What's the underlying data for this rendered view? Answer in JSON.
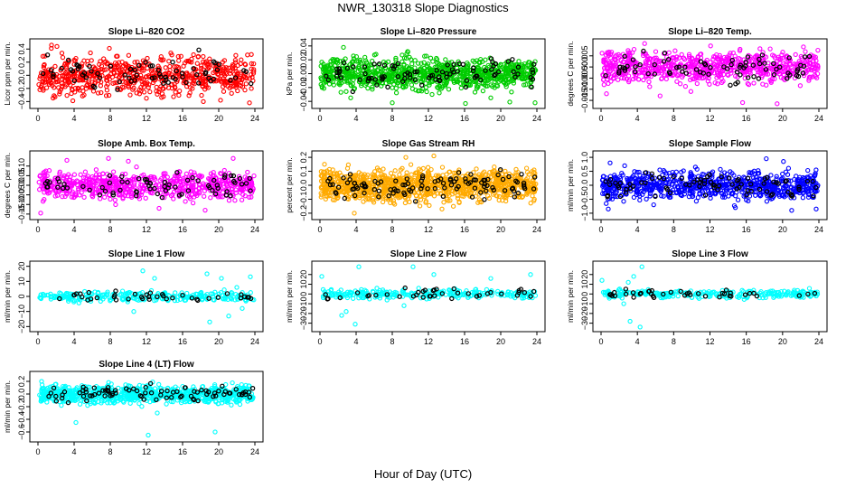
{
  "header": {
    "title": "NWR_130318  Slope Diagnostics",
    "x_caption": "Hour of Day (UTC)"
  },
  "chart_data": [
    {
      "type": "scatter",
      "title": "Slope Li–820 CO2",
      "ylabel": "Licor ppm per min.",
      "color": "#ff0000",
      "xlim": [
        0,
        24
      ],
      "ylim": [
        -0.45,
        0.5
      ],
      "xticks": [
        0,
        4,
        8,
        12,
        16,
        20,
        24
      ],
      "yticks": [
        -0.4,
        -0.2,
        0.0,
        0.2,
        0.4
      ],
      "ytick_labels": [
        "−0.4",
        "−0.2",
        "0.0",
        "0.2",
        "0.4"
      ],
      "spread": 0.14,
      "n": 650,
      "outliers": [
        [
          1.5,
          0.46
        ],
        [
          2.1,
          0.44
        ],
        [
          10.2,
          -0.3
        ],
        [
          12.0,
          -0.35
        ],
        [
          18.3,
          -0.4
        ],
        [
          23.4,
          -0.42
        ],
        [
          5.1,
          -0.3
        ],
        [
          20.2,
          -0.38
        ],
        [
          14.7,
          0.34
        ],
        [
          7.9,
          0.41
        ]
      ]
    },
    {
      "type": "scatter",
      "title": "Slope Li–820 Pressure",
      "ylabel": "kPa per min.",
      "color": "#00cc00",
      "xlim": [
        0,
        24
      ],
      "ylim": [
        -0.045,
        0.045
      ],
      "xticks": [
        0,
        4,
        8,
        12,
        16,
        20,
        24
      ],
      "yticks": [
        -0.04,
        -0.02,
        0.0,
        0.02,
        0.04
      ],
      "ytick_labels": [
        "−0.04",
        "−0.02",
        "0.00",
        "0.02",
        "0.04"
      ],
      "spread": 0.011,
      "n": 900,
      "outliers": [
        [
          2.6,
          0.038
        ],
        [
          3.4,
          -0.035
        ],
        [
          8.0,
          -0.042
        ],
        [
          16.1,
          -0.043
        ],
        [
          21.0,
          -0.041
        ],
        [
          23.8,
          -0.042
        ],
        [
          12.4,
          -0.03
        ],
        [
          9.7,
          0.032
        ],
        [
          18.9,
          -0.035
        ],
        [
          6.2,
          0.028
        ]
      ]
    },
    {
      "type": "scatter",
      "title": "Slope Li–820 Temp.",
      "ylabel": "degrees C per min.",
      "color": "#ff00ff",
      "xlim": [
        0,
        24
      ],
      "ylim": [
        -0.017,
        0.011
      ],
      "xticks": [
        0,
        4,
        8,
        12,
        16,
        20,
        24
      ],
      "yticks": [
        -0.015,
        -0.01,
        -0.005,
        0.0,
        0.005
      ],
      "ytick_labels": [
        "−0.015",
        "−0.010",
        "−0.005",
        "0.000",
        "0.005"
      ],
      "spread": 0.0035,
      "n": 700,
      "outliers": [
        [
          4.8,
          0.0105
        ],
        [
          15.6,
          -0.016
        ],
        [
          19.4,
          -0.0165
        ],
        [
          0.6,
          -0.012
        ],
        [
          9.9,
          -0.011
        ],
        [
          22.3,
          0.009
        ],
        [
          6.5,
          -0.013
        ]
      ]
    },
    {
      "type": "scatter",
      "title": "Slope Amb. Box Temp.",
      "ylabel": "degrees C per min.",
      "color": "#ff00ff",
      "xlim": [
        0,
        24
      ],
      "ylim": [
        -0.16,
        0.16
      ],
      "xticks": [
        0,
        4,
        8,
        12,
        16,
        20,
        24
      ],
      "yticks": [
        -0.15,
        -0.1,
        -0.05,
        0.0,
        0.05,
        0.1
      ],
      "ytick_labels": [
        "−0.15",
        "−0.10",
        "−0.05",
        "0.00",
        "0.05",
        "0.10"
      ],
      "spread": 0.035,
      "n": 650,
      "outliers": [
        [
          0.3,
          -0.145
        ],
        [
          13.4,
          -0.12
        ],
        [
          3.2,
          0.13
        ],
        [
          7.8,
          0.14
        ],
        [
          21.6,
          0.14
        ],
        [
          18.5,
          -0.13
        ],
        [
          10.0,
          0.125
        ]
      ]
    },
    {
      "type": "scatter",
      "title": "Slope Gas Stream RH",
      "ylabel": "percent per min.",
      "color": "#ffaa00",
      "xlim": [
        0,
        24
      ],
      "ylim": [
        -0.22,
        0.22
      ],
      "xticks": [
        0,
        4,
        8,
        12,
        16,
        20,
        24
      ],
      "yticks": [
        -0.2,
        -0.1,
        0.0,
        0.1,
        0.2
      ],
      "ytick_labels": [
        "−0.2",
        "−0.1",
        "0.0",
        "0.1",
        "0.2"
      ],
      "spread": 0.055,
      "n": 1100,
      "outliers": [
        [
          3.8,
          -0.2
        ],
        [
          9.5,
          0.2
        ],
        [
          13.5,
          -0.17
        ],
        [
          12.6,
          0.21
        ],
        [
          0.5,
          0.15
        ]
      ]
    },
    {
      "type": "scatter",
      "title": "Slope Sample Flow",
      "ylabel": "ml/min per min.",
      "color": "#0000ff",
      "xlim": [
        0,
        24
      ],
      "ylim": [
        -1.1,
        1.1
      ],
      "xticks": [
        0,
        4,
        8,
        12,
        16,
        20,
        24
      ],
      "yticks": [
        -1.0,
        -0.5,
        0.0,
        0.5,
        1.0
      ],
      "ytick_labels": [
        "−1.0",
        "−0.5",
        "0.0",
        "0.5",
        "1.0"
      ],
      "spread": 0.24,
      "n": 750,
      "outliers": [
        [
          1.0,
          0.8
        ],
        [
          0.8,
          -0.85
        ],
        [
          2.6,
          0.7
        ],
        [
          14.8,
          -0.8
        ],
        [
          18.2,
          0.95
        ],
        [
          21.0,
          -0.9
        ],
        [
          23.7,
          -0.85
        ],
        [
          20.1,
          0.85
        ],
        [
          5.8,
          -0.7
        ],
        [
          10.4,
          0.65
        ]
      ]
    },
    {
      "type": "scatter",
      "title": "Slope Line 1 Flow",
      "ylabel": "ml/min per min.",
      "color": "#00ffff",
      "xlim": [
        0,
        24
      ],
      "ylim": [
        -21,
        21
      ],
      "xticks": [
        0,
        4,
        8,
        12,
        16,
        20,
        24
      ],
      "yticks": [
        -20,
        -10,
        0,
        10,
        20
      ],
      "ytick_labels": [
        "−20",
        "−10",
        "0",
        "10",
        "20"
      ],
      "spread": 1.6,
      "n": 260,
      "outliers": [
        [
          11.6,
          17
        ],
        [
          12.9,
          12
        ],
        [
          10.6,
          -10
        ],
        [
          19.0,
          -17
        ],
        [
          20.3,
          12
        ],
        [
          22.6,
          -8
        ],
        [
          23.5,
          13
        ],
        [
          21.1,
          -13
        ],
        [
          18.7,
          15
        ],
        [
          22.0,
          6
        ]
      ]
    },
    {
      "type": "scatter",
      "title": "Slope Line 2 Flow",
      "ylabel": "ml/min per min.",
      "color": "#00ffff",
      "xlim": [
        0,
        24
      ],
      "ylim": [
        -35,
        30
      ],
      "xticks": [
        0,
        4,
        8,
        12,
        16,
        20,
        24
      ],
      "yticks": [
        -30,
        -20,
        -10,
        0,
        10,
        20
      ],
      "ytick_labels": [
        "−30",
        "−20",
        "−10",
        "0",
        "10",
        "20"
      ],
      "spread": 2.5,
      "n": 260,
      "outliers": [
        [
          4.3,
          28
        ],
        [
          3.9,
          -31
        ],
        [
          10.3,
          28
        ],
        [
          2.4,
          -22
        ],
        [
          12.6,
          20
        ],
        [
          18.9,
          16
        ],
        [
          23.3,
          20
        ],
        [
          0.2,
          18
        ],
        [
          9.3,
          -12
        ],
        [
          2.9,
          -18
        ]
      ]
    },
    {
      "type": "scatter",
      "title": "Slope Line 3 Flow",
      "ylabel": "ml/min per min.",
      "color": "#00ffff",
      "xlim": [
        0,
        24
      ],
      "ylim": [
        -35,
        30
      ],
      "xticks": [
        0,
        4,
        8,
        12,
        16,
        20,
        24
      ],
      "yticks": [
        -30,
        -20,
        -10,
        0,
        10,
        20
      ],
      "ytick_labels": [
        "−30",
        "−20",
        "−10",
        "0",
        "10",
        "20"
      ],
      "spread": 2.0,
      "n": 260,
      "outliers": [
        [
          4.5,
          28
        ],
        [
          3.6,
          18
        ],
        [
          3.2,
          -28
        ],
        [
          4.3,
          -34
        ],
        [
          2.5,
          -10
        ],
        [
          0.1,
          14
        ],
        [
          3.0,
          12
        ]
      ]
    },
    {
      "type": "scatter",
      "title": "Slope Line 4 (LT) Flow",
      "ylabel": "ml/min per min.",
      "color": "#00ffff",
      "xlim": [
        0,
        24
      ],
      "ylim": [
        -0.7,
        0.3
      ],
      "xticks": [
        0,
        4,
        8,
        12,
        16,
        20,
        24
      ],
      "yticks": [
        -0.6,
        -0.4,
        -0.2,
        0.0,
        0.2
      ],
      "ytick_labels": [
        "−0.6",
        "−0.4",
        "−0.2",
        "0.0",
        "0.2"
      ],
      "spread": 0.07,
      "n": 800,
      "outliers": [
        [
          12.2,
          -0.65
        ],
        [
          19.6,
          -0.6
        ],
        [
          4.2,
          -0.45
        ],
        [
          13.2,
          -0.3
        ],
        [
          0.4,
          0.2
        ]
      ]
    }
  ]
}
